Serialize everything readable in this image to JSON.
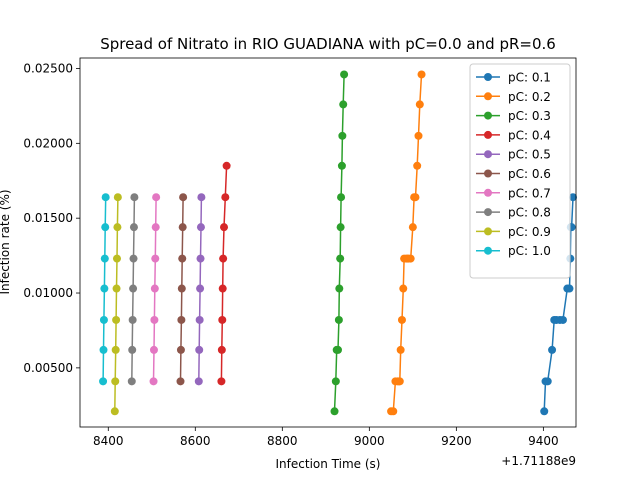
{
  "chart_data": {
    "type": "line",
    "title": "Spread of Nitrato in RIO GUADIANA with pC=0.0 and pR=0.6",
    "xlabel": "Infection Time (s)",
    "ylabel": "Infection rate (%)",
    "x_offset_text": "+1.71188e9",
    "xlim": [
      8335,
      9475
    ],
    "ylim": [
      0.00105,
      0.0257
    ],
    "x_ticks": [
      8400,
      8600,
      8800,
      9000,
      9200,
      9400
    ],
    "y_ticks": [
      0.005,
      0.01,
      0.015,
      0.02,
      0.025
    ],
    "x_tick_labels": [
      "8400",
      "8600",
      "8800",
      "9000",
      "9200",
      "9400"
    ],
    "y_tick_labels": [
      "0.00500",
      "0.01000",
      "0.01500",
      "0.02000",
      "0.02500"
    ],
    "legend_position": "top-right",
    "series": [
      {
        "name": "pC: 0.1",
        "color": "#1f77b4",
        "x": [
          9402,
          9405,
          9410,
          9420,
          9425,
          9430,
          9438,
          9445,
          9455,
          9460,
          9462,
          9463,
          9465,
          9468
        ],
        "y": [
          0.0021,
          0.0041,
          0.0041,
          0.0062,
          0.0082,
          0.0082,
          0.0082,
          0.0082,
          0.0103,
          0.0103,
          0.0123,
          0.0144,
          0.0144,
          0.0164
        ]
      },
      {
        "name": "pC: 0.2",
        "color": "#ff7f0e",
        "x": [
          9050,
          9055,
          9060,
          9065,
          9068,
          9070,
          9072,
          9075,
          9078,
          9080,
          9085,
          9088,
          9090,
          9095,
          9100,
          9103,
          9106,
          9110,
          9113,
          9116,
          9120
        ],
        "y": [
          0.0021,
          0.0021,
          0.0041,
          0.0041,
          0.0041,
          0.0041,
          0.0062,
          0.0082,
          0.0103,
          0.0123,
          0.0123,
          0.0123,
          0.0123,
          0.0123,
          0.0144,
          0.0164,
          0.0164,
          0.0185,
          0.0205,
          0.0226,
          0.0246
        ]
      },
      {
        "name": "pC: 0.3",
        "color": "#2ca02c",
        "x": [
          8920,
          8923,
          8925,
          8928,
          8930,
          8931,
          8933,
          8934,
          8935,
          8937,
          8938,
          8940,
          8942
        ],
        "y": [
          0.0021,
          0.0041,
          0.0062,
          0.0062,
          0.0082,
          0.0103,
          0.0123,
          0.0144,
          0.0164,
          0.0185,
          0.0205,
          0.0226,
          0.0246
        ]
      },
      {
        "name": "pC: 0.4",
        "color": "#d62728",
        "x": [
          8660,
          8661,
          8662,
          8663,
          8664,
          8666,
          8669,
          8672
        ],
        "y": [
          0.0041,
          0.0062,
          0.0082,
          0.0103,
          0.0123,
          0.0144,
          0.0164,
          0.0185
        ]
      },
      {
        "name": "pC: 0.5",
        "color": "#9467bd",
        "x": [
          8608,
          8609,
          8610,
          8611,
          8612,
          8613,
          8614
        ],
        "y": [
          0.0041,
          0.0062,
          0.0082,
          0.0103,
          0.0123,
          0.0144,
          0.0164
        ]
      },
      {
        "name": "pC: 0.6",
        "color": "#8c564b",
        "x": [
          8566,
          8567,
          8568,
          8569,
          8570,
          8571,
          8572
        ],
        "y": [
          0.0041,
          0.0062,
          0.0082,
          0.0103,
          0.0123,
          0.0144,
          0.0164
        ]
      },
      {
        "name": "pC: 0.7",
        "color": "#e377c2",
        "x": [
          8504,
          8505,
          8506,
          8507,
          8508,
          8509,
          8510
        ],
        "y": [
          0.0041,
          0.0062,
          0.0082,
          0.0103,
          0.0123,
          0.0144,
          0.0164
        ]
      },
      {
        "name": "pC: 0.8",
        "color": "#7f7f7f",
        "x": [
          8454,
          8455,
          8456,
          8457,
          8458,
          8459,
          8460
        ],
        "y": [
          0.0041,
          0.0062,
          0.0082,
          0.0103,
          0.0123,
          0.0144,
          0.0164
        ]
      },
      {
        "name": "pC: 0.9",
        "color": "#bcbd22",
        "x": [
          8415,
          8416,
          8417,
          8418,
          8419,
          8420,
          8421,
          8422
        ],
        "y": [
          0.0021,
          0.0041,
          0.0062,
          0.0082,
          0.0103,
          0.0123,
          0.0144,
          0.0164
        ]
      },
      {
        "name": "pC: 1.0",
        "color": "#17becf",
        "x": [
          8388,
          8389,
          8390,
          8391,
          8392,
          8393,
          8394
        ],
        "y": [
          0.0041,
          0.0062,
          0.0082,
          0.0103,
          0.0123,
          0.0144,
          0.0164
        ]
      }
    ]
  }
}
